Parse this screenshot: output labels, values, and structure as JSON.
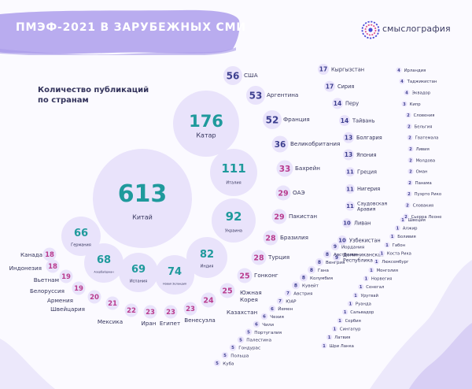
{
  "header": {
    "title": "ПМЭФ-2021 В ЗАРУБЕЖНЫХ СМИ",
    "brand": "смыслография",
    "subtitle_line1": "Количество публикаций",
    "subtitle_line2": "по странам"
  },
  "colors": {
    "bubble": "#e9e3fb",
    "teal": "#1f9a9c",
    "number": "#3d3f8f",
    "label": "#34345c",
    "pink": "#b93b8e",
    "ring": "#ded7f4",
    "banner": "#b9acef"
  },
  "chart_data": {
    "type": "bubble",
    "title": "Количество публикаций по странам",
    "big": [
      {
        "name": "Китай",
        "value": 613
      },
      {
        "name": "Катар",
        "value": 176
      },
      {
        "name": "Италия",
        "value": 111
      },
      {
        "name": "Украина",
        "value": 92
      },
      {
        "name": "Индия",
        "value": 82
      },
      {
        "name": "Новая Зеландия",
        "value": 74
      },
      {
        "name": "Испания",
        "value": 69
      },
      {
        "name": "Азербайджан",
        "value": 68
      },
      {
        "name": "Германия",
        "value": 66
      }
    ],
    "arc": [
      {
        "name": "США",
        "value": 56
      },
      {
        "name": "Аргентина",
        "value": 53
      },
      {
        "name": "Франция",
        "value": 52
      },
      {
        "name": "Великобритания",
        "value": 36
      },
      {
        "name": "Бахрейн",
        "value": 33
      },
      {
        "name": "ОАЭ",
        "value": 29
      },
      {
        "name": "Пакистан",
        "value": 29
      },
      {
        "name": "Бразилия",
        "value": 28
      },
      {
        "name": "Турция",
        "value": 28
      },
      {
        "name": "Гонконг",
        "value": 25
      },
      {
        "name": "Южная Корея",
        "value": 25
      },
      {
        "name": "Казахстан",
        "value": 24
      },
      {
        "name": "Венесуэла",
        "value": 23
      },
      {
        "name": "Египет",
        "value": 23
      },
      {
        "name": "Иран",
        "value": 23
      },
      {
        "name": "Мексика",
        "value": 22
      },
      {
        "name": "Швейцария",
        "value": 21
      },
      {
        "name": "Армения",
        "value": 20
      },
      {
        "name": "Белоруссия",
        "value": 19
      },
      {
        "name": "Вьетнам",
        "value": 19
      },
      {
        "name": "Индонезия",
        "value": 18
      },
      {
        "name": "Канада",
        "value": 18
      }
    ],
    "col1": [
      {
        "name": "Кыргызстан",
        "value": 17
      },
      {
        "name": "Сирия",
        "value": 17
      },
      {
        "name": "Перу",
        "value": 14
      },
      {
        "name": "Тайвань",
        "value": 14
      },
      {
        "name": "Болгария",
        "value": 13
      },
      {
        "name": "Япония",
        "value": 13
      },
      {
        "name": "Греция",
        "value": 11
      },
      {
        "name": "Нигерия",
        "value": 11
      },
      {
        "name": "Саудовская Аравия",
        "value": 11
      },
      {
        "name": "Ливан",
        "value": 10
      },
      {
        "name": "Узбекистан",
        "value": 10
      },
      {
        "name": "Доминиканская Республика",
        "value": 9
      },
      {
        "name": "Иордания",
        "value": 9
      },
      {
        "name": "Австралия",
        "value": 8
      },
      {
        "name": "Венгрия",
        "value": 8
      },
      {
        "name": "Гана",
        "value": 8
      },
      {
        "name": "Колумбия",
        "value": 8
      },
      {
        "name": "Кувейт",
        "value": 8
      },
      {
        "name": "Австрия",
        "value": 7
      },
      {
        "name": "ЮАР",
        "value": 7
      },
      {
        "name": "Йемен",
        "value": 6
      },
      {
        "name": "Чехия",
        "value": 6
      },
      {
        "name": "Чили",
        "value": 6
      },
      {
        "name": "Португалия",
        "value": 5
      },
      {
        "name": "Палестина",
        "value": 5
      },
      {
        "name": "Гондурас",
        "value": 5
      },
      {
        "name": "Польша",
        "value": 5
      },
      {
        "name": "Куба",
        "value": 5
      }
    ],
    "col2": [
      {
        "name": "Ирландия",
        "value": 4
      },
      {
        "name": "Таджикистан",
        "value": 4
      },
      {
        "name": "Эквадор",
        "value": 4
      },
      {
        "name": "Кипр",
        "value": 3
      },
      {
        "name": "Словения",
        "value": 2
      },
      {
        "name": "Бельгия",
        "value": 2
      },
      {
        "name": "Гватемала",
        "value": 2
      },
      {
        "name": "Ливия",
        "value": 2
      },
      {
        "name": "Молдова",
        "value": 2
      },
      {
        "name": "Оман",
        "value": 2
      },
      {
        "name": "Панама",
        "value": 2
      },
      {
        "name": "Пуэрто Рико",
        "value": 2
      },
      {
        "name": "Словакия",
        "value": 2
      },
      {
        "name": "Сьерра Леоне",
        "value": 2
      },
      {
        "name": "Швеция",
        "value": 1
      },
      {
        "name": "Алжир",
        "value": 1
      },
      {
        "name": "Боливия",
        "value": 1
      },
      {
        "name": "Габон",
        "value": 1
      },
      {
        "name": "Коста Рика",
        "value": 1
      },
      {
        "name": "Люксембург",
        "value": 1
      },
      {
        "name": "Монголия",
        "value": 1
      },
      {
        "name": "Норвегия",
        "value": 1
      },
      {
        "name": "Сенегал",
        "value": 1
      },
      {
        "name": "Уругвай",
        "value": 1
      },
      {
        "name": "Руанда",
        "value": 1
      },
      {
        "name": "Сальвадор",
        "value": 1
      },
      {
        "name": "Сербия",
        "value": 1
      },
      {
        "name": "Сингапур",
        "value": 1
      },
      {
        "name": "Латвия",
        "value": 1
      },
      {
        "name": "Шри Ланка",
        "value": 1
      }
    ]
  }
}
